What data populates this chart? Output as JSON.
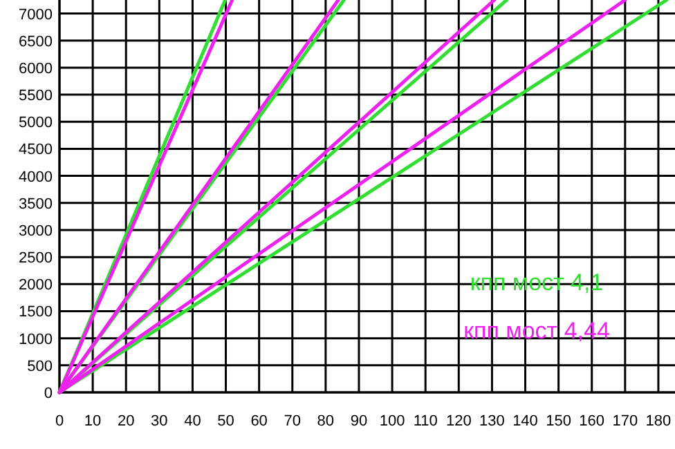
{
  "chart_data": {
    "type": "line",
    "xlim": [
      0,
      185
    ],
    "ylim": [
      0,
      7250
    ],
    "xticks": [
      0,
      10,
      20,
      30,
      40,
      50,
      60,
      70,
      80,
      90,
      100,
      110,
      120,
      130,
      140,
      150,
      160,
      170,
      180
    ],
    "yticks": [
      0,
      500,
      1000,
      1500,
      2000,
      2500,
      3000,
      3500,
      4000,
      4500,
      5000,
      5500,
      6000,
      6500,
      7000
    ],
    "grid": true,
    "legend": "right",
    "line_style": "solid",
    "marker": "none",
    "series": [
      {
        "name": "кпп мост 4,1",
        "color": "#33dd33",
        "x": [
          0,
          49.8
        ],
        "values": [
          0,
          7250
        ]
      },
      {
        "color": "#33dd33",
        "x": [
          0,
          85.5
        ],
        "values": [
          0,
          7250
        ]
      },
      {
        "color": "#33dd33",
        "x": [
          0,
          134.4
        ],
        "values": [
          0,
          7250
        ]
      },
      {
        "color": "#33dd33",
        "x": [
          0,
          182.5
        ],
        "values": [
          0,
          7250
        ]
      },
      {
        "name": "кпп мост 4,44",
        "color": "#ee22ee",
        "x": [
          0,
          51.9
        ],
        "values": [
          0,
          7250
        ]
      },
      {
        "color": "#ee22ee",
        "x": [
          0,
          83.8
        ],
        "values": [
          0,
          7250
        ]
      },
      {
        "color": "#ee22ee",
        "x": [
          0,
          130.7
        ],
        "values": [
          0,
          7250
        ]
      },
      {
        "color": "#ee22ee",
        "x": [
          0,
          170
        ],
        "values": [
          0,
          7250
        ]
      }
    ]
  }
}
